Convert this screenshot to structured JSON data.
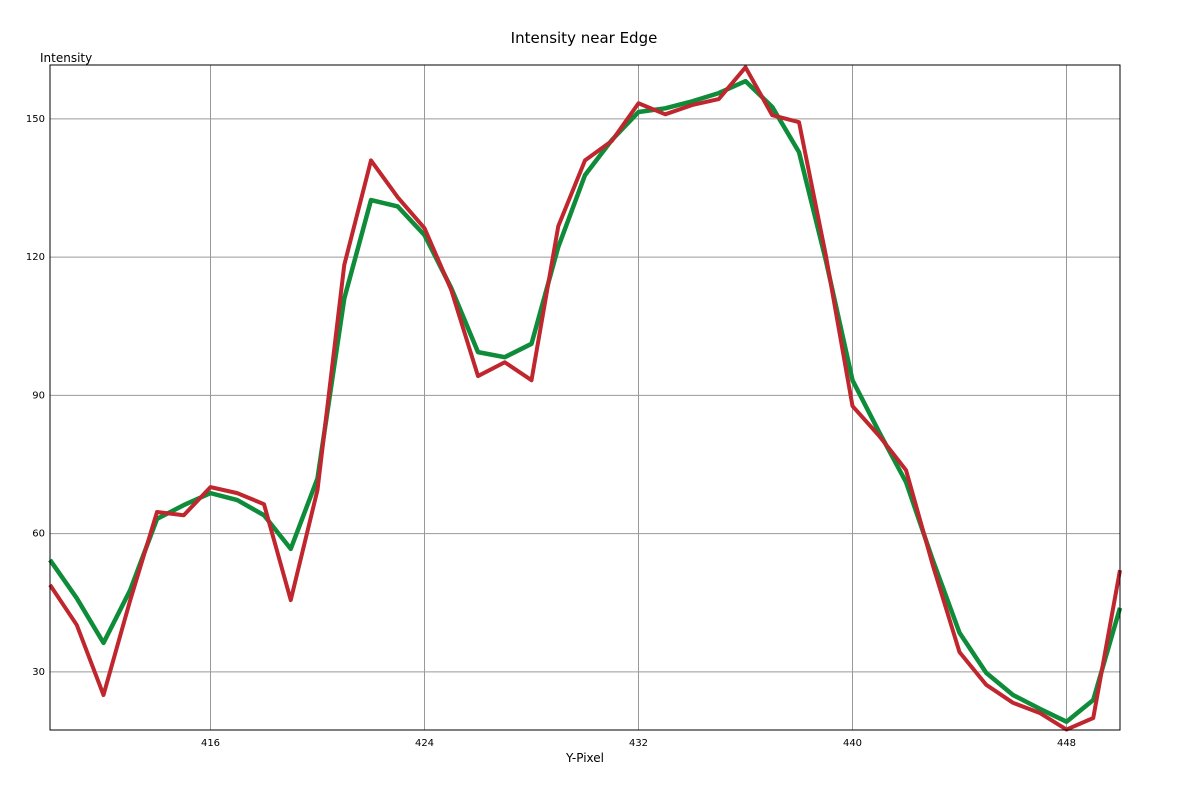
{
  "chart_data": {
    "type": "line",
    "title": "Intensity near Edge",
    "x_label": "Y-Pixel",
    "y_label": "Intensity",
    "x": [
      410,
      411,
      412,
      413,
      414,
      415,
      416,
      417,
      418,
      419,
      420,
      421,
      422,
      423,
      424,
      425,
      426,
      427,
      428,
      429,
      430,
      431,
      432,
      433,
      434,
      435,
      436,
      437,
      438,
      439,
      440,
      441,
      442,
      443,
      444,
      445,
      446,
      447,
      448,
      449,
      450
    ],
    "series": [
      {
        "color": "#0e8c3a",
        "values": [
          54.3,
          46,
          36.3,
          47.8,
          63.2,
          66.2,
          68.8,
          67.3,
          64,
          56.7,
          72,
          111,
          132.4,
          131,
          124.8,
          113.3,
          99.4,
          98.3,
          101.2,
          122.2,
          137.8,
          145.4,
          151.5,
          152.3,
          153.8,
          155.6,
          158.2,
          152.6,
          142.8,
          119.4,
          93.3,
          82,
          71.2,
          54.3,
          38.5,
          29.8,
          25,
          22,
          19.2,
          23.9,
          43.9
        ]
      },
      {
        "color": "#c0262d",
        "values": [
          48.9,
          40.2,
          25,
          45.6,
          64.7,
          64,
          70.1,
          68.8,
          66.4,
          45.6,
          69.5,
          118.3,
          141,
          133,
          126.3,
          112.9,
          94.2,
          97.2,
          93.3,
          126.7,
          141,
          145.2,
          153.4,
          151,
          153,
          154.3,
          161.2,
          150.8,
          149.3,
          120.5,
          87.7,
          81.2,
          73.8,
          53.2,
          34.3,
          27.2,
          23.3,
          21.1,
          17.5,
          20,
          52.1
        ]
      }
    ],
    "xlim": [
      410,
      450
    ],
    "ylim": [
      17.4,
      161.7
    ],
    "xticks": [
      416,
      424,
      432,
      440,
      448
    ],
    "yticks": [
      30,
      60,
      90,
      120,
      150
    ],
    "grid": true
  }
}
